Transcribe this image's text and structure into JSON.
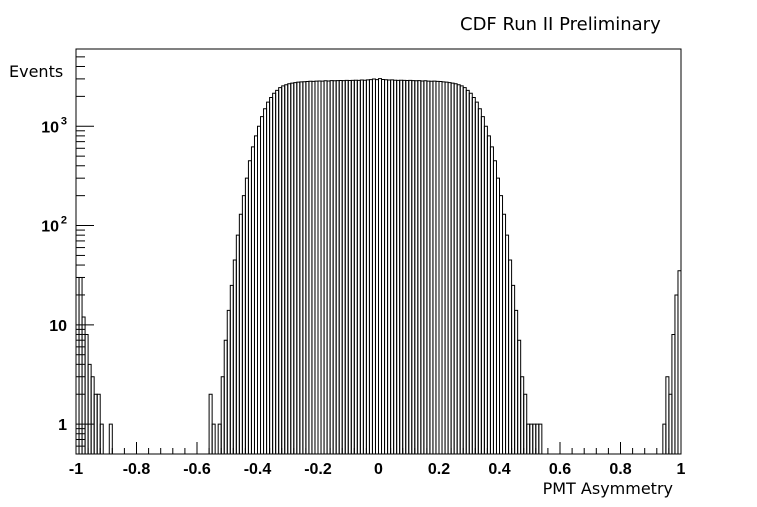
{
  "chart_data": {
    "type": "histogram",
    "title": "CDF Run II Preliminary",
    "xlabel": "PMT Asymmetry",
    "ylabel": "Events",
    "xlim": [
      -1,
      1
    ],
    "ylim": [
      0.5,
      6000
    ],
    "yscale": "log",
    "grid": false,
    "legend": "none",
    "x_ticks": [
      "-1",
      "-0.8",
      "-0.6",
      "-0.4",
      "-0.2",
      "0",
      "0.2",
      "0.4",
      "0.6",
      "0.8",
      "1"
    ],
    "x_tick_values": [
      -1,
      -0.8,
      -0.6,
      -0.4,
      -0.2,
      0,
      0.2,
      0.4,
      0.6,
      0.8,
      1
    ],
    "y_ticks": [
      {
        "value": 1,
        "base": "1",
        "exp": ""
      },
      {
        "value": 10,
        "base": "10",
        "exp": ""
      },
      {
        "value": 100,
        "base": "10",
        "exp": "2"
      },
      {
        "value": 1000,
        "base": "10",
        "exp": "3"
      }
    ],
    "bin_width": 0.01,
    "bin_edges_from": -1.0,
    "bins": [
      {
        "x": -1.0,
        "y": 30
      },
      {
        "x": -0.99,
        "y": 30
      },
      {
        "x": -0.98,
        "y": 12
      },
      {
        "x": -0.97,
        "y": 8
      },
      {
        "x": -0.96,
        "y": 4
      },
      {
        "x": -0.95,
        "y": 3
      },
      {
        "x": -0.94,
        "y": 2
      },
      {
        "x": -0.93,
        "y": 2
      },
      {
        "x": -0.92,
        "y": 1
      },
      {
        "x": -0.89,
        "y": 1
      },
      {
        "x": -0.56,
        "y": 2
      },
      {
        "x": -0.55,
        "y": 1
      },
      {
        "x": -0.53,
        "y": 1
      },
      {
        "x": -0.52,
        "y": 3
      },
      {
        "x": -0.51,
        "y": 7
      },
      {
        "x": -0.5,
        "y": 14
      },
      {
        "x": -0.49,
        "y": 25
      },
      {
        "x": -0.48,
        "y": 45
      },
      {
        "x": -0.47,
        "y": 80
      },
      {
        "x": -0.46,
        "y": 130
      },
      {
        "x": -0.45,
        "y": 200
      },
      {
        "x": -0.44,
        "y": 300
      },
      {
        "x": -0.43,
        "y": 450
      },
      {
        "x": -0.42,
        "y": 620
      },
      {
        "x": -0.41,
        "y": 800
      },
      {
        "x": -0.4,
        "y": 1000
      },
      {
        "x": -0.39,
        "y": 1250
      },
      {
        "x": -0.38,
        "y": 1500
      },
      {
        "x": -0.37,
        "y": 1750
      },
      {
        "x": -0.36,
        "y": 1950
      },
      {
        "x": -0.35,
        "y": 2150
      },
      {
        "x": -0.34,
        "y": 2300
      },
      {
        "x": -0.33,
        "y": 2450
      },
      {
        "x": -0.32,
        "y": 2550
      },
      {
        "x": -0.31,
        "y": 2620
      },
      {
        "x": -0.3,
        "y": 2680
      },
      {
        "x": -0.29,
        "y": 2720
      },
      {
        "x": -0.28,
        "y": 2750
      },
      {
        "x": -0.27,
        "y": 2780
      },
      {
        "x": -0.26,
        "y": 2800
      },
      {
        "x": -0.25,
        "y": 2810
      },
      {
        "x": -0.24,
        "y": 2820
      },
      {
        "x": -0.23,
        "y": 2840
      },
      {
        "x": -0.22,
        "y": 2830
      },
      {
        "x": -0.21,
        "y": 2850
      },
      {
        "x": -0.2,
        "y": 2860
      },
      {
        "x": -0.19,
        "y": 2850
      },
      {
        "x": -0.18,
        "y": 2870
      },
      {
        "x": -0.17,
        "y": 2860
      },
      {
        "x": -0.16,
        "y": 2880
      },
      {
        "x": -0.15,
        "y": 2870
      },
      {
        "x": -0.14,
        "y": 2880
      },
      {
        "x": -0.13,
        "y": 2890
      },
      {
        "x": -0.12,
        "y": 2880
      },
      {
        "x": -0.11,
        "y": 2900
      },
      {
        "x": -0.1,
        "y": 2890
      },
      {
        "x": -0.09,
        "y": 2900
      },
      {
        "x": -0.08,
        "y": 2910
      },
      {
        "x": -0.07,
        "y": 2900
      },
      {
        "x": -0.06,
        "y": 2920
      },
      {
        "x": -0.05,
        "y": 2910
      },
      {
        "x": -0.04,
        "y": 2930
      },
      {
        "x": -0.03,
        "y": 2950
      },
      {
        "x": -0.02,
        "y": 2990
      },
      {
        "x": -0.01,
        "y": 2950
      },
      {
        "x": 0.0,
        "y": 3020
      },
      {
        "x": 0.01,
        "y": 2960
      },
      {
        "x": 0.02,
        "y": 2940
      },
      {
        "x": 0.03,
        "y": 2920
      },
      {
        "x": 0.04,
        "y": 2930
      },
      {
        "x": 0.05,
        "y": 2910
      },
      {
        "x": 0.06,
        "y": 2900
      },
      {
        "x": 0.07,
        "y": 2910
      },
      {
        "x": 0.08,
        "y": 2900
      },
      {
        "x": 0.09,
        "y": 2890
      },
      {
        "x": 0.1,
        "y": 2900
      },
      {
        "x": 0.11,
        "y": 2880
      },
      {
        "x": 0.12,
        "y": 2870
      },
      {
        "x": 0.13,
        "y": 2880
      },
      {
        "x": 0.14,
        "y": 2860
      },
      {
        "x": 0.15,
        "y": 2870
      },
      {
        "x": 0.16,
        "y": 2850
      },
      {
        "x": 0.17,
        "y": 2840
      },
      {
        "x": 0.18,
        "y": 2850
      },
      {
        "x": 0.19,
        "y": 2830
      },
      {
        "x": 0.2,
        "y": 2820
      },
      {
        "x": 0.21,
        "y": 2800
      },
      {
        "x": 0.22,
        "y": 2780
      },
      {
        "x": 0.23,
        "y": 2750
      },
      {
        "x": 0.24,
        "y": 2720
      },
      {
        "x": 0.25,
        "y": 2680
      },
      {
        "x": 0.26,
        "y": 2620
      },
      {
        "x": 0.27,
        "y": 2550
      },
      {
        "x": 0.28,
        "y": 2450
      },
      {
        "x": 0.29,
        "y": 2300
      },
      {
        "x": 0.3,
        "y": 2150
      },
      {
        "x": 0.31,
        "y": 1950
      },
      {
        "x": 0.32,
        "y": 1750
      },
      {
        "x": 0.33,
        "y": 1500
      },
      {
        "x": 0.34,
        "y": 1250
      },
      {
        "x": 0.35,
        "y": 1000
      },
      {
        "x": 0.36,
        "y": 800
      },
      {
        "x": 0.37,
        "y": 620
      },
      {
        "x": 0.38,
        "y": 450
      },
      {
        "x": 0.39,
        "y": 300
      },
      {
        "x": 0.4,
        "y": 200
      },
      {
        "x": 0.41,
        "y": 130
      },
      {
        "x": 0.42,
        "y": 80
      },
      {
        "x": 0.43,
        "y": 45
      },
      {
        "x": 0.44,
        "y": 25
      },
      {
        "x": 0.45,
        "y": 14
      },
      {
        "x": 0.46,
        "y": 7
      },
      {
        "x": 0.47,
        "y": 3
      },
      {
        "x": 0.48,
        "y": 2
      },
      {
        "x": 0.49,
        "y": 1
      },
      {
        "x": 0.5,
        "y": 1
      },
      {
        "x": 0.51,
        "y": 1
      },
      {
        "x": 0.52,
        "y": 1
      },
      {
        "x": 0.53,
        "y": 1
      },
      {
        "x": 0.94,
        "y": 1
      },
      {
        "x": 0.95,
        "y": 3
      },
      {
        "x": 0.96,
        "y": 2
      },
      {
        "x": 0.97,
        "y": 8
      },
      {
        "x": 0.98,
        "y": 20
      },
      {
        "x": 0.99,
        "y": 35
      }
    ]
  }
}
